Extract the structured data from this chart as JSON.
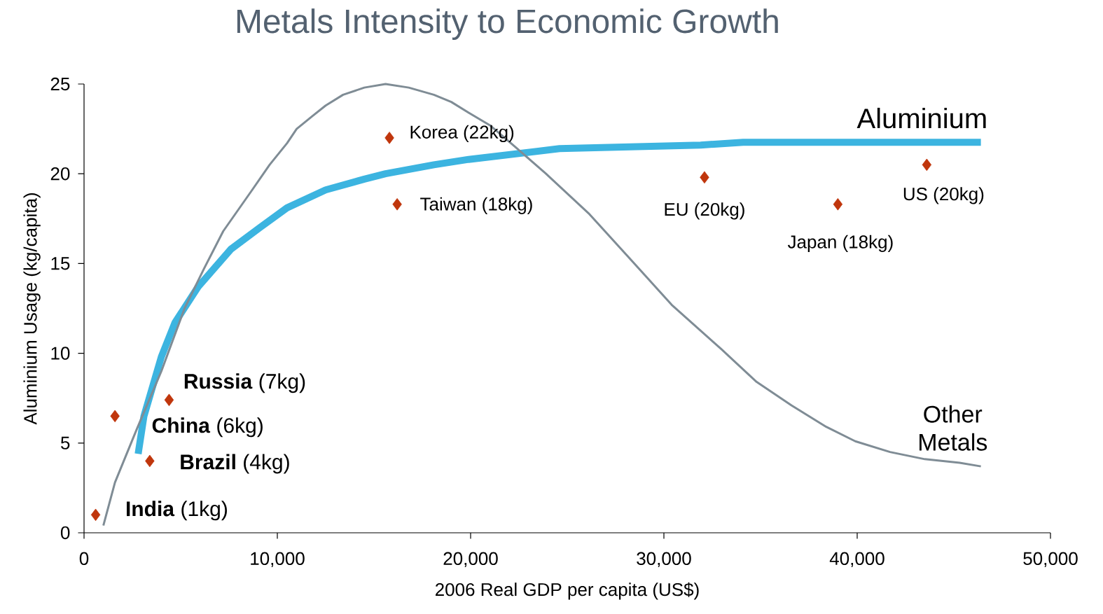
{
  "chart_data": {
    "type": "line",
    "title": "Metals Intensity to Economic Growth",
    "xlabel": "2006 Real GDP per capita (US$)",
    "ylabel": "Aluminium Usage (kg/capita)",
    "xlim": [
      0,
      50000
    ],
    "ylim": [
      0,
      25
    ],
    "xticks": [
      0,
      {
        "value": 10000,
        "label": "10,000"
      },
      {
        "value": 20000,
        "label": "20,000"
      },
      {
        "value": 30000,
        "label": "30,000"
      },
      {
        "value": 40000,
        "label": "40,000"
      },
      {
        "value": 50000,
        "label": "50,000"
      }
    ],
    "yticks": [
      0,
      5,
      10,
      15,
      20,
      25
    ],
    "series": [
      {
        "name": "Aluminium",
        "color": "#3cb4e0",
        "x": [
          2800,
          3100,
          4000,
          4700,
          5900,
          7600,
          9100,
          10500,
          12500,
          14500,
          15600,
          18100,
          19900,
          24600,
          31900,
          34100,
          46400
        ],
        "values": [
          4.4,
          6.5,
          9.8,
          11.7,
          13.7,
          15.8,
          17.0,
          18.1,
          19.1,
          19.7,
          20.0,
          20.5,
          20.8,
          21.4,
          21.6,
          21.75,
          21.75
        ]
      },
      {
        "name": "Other Metals",
        "color": "#7f8c95",
        "x": [
          1000,
          1600,
          2700,
          4000,
          5200,
          6200,
          7200,
          8700,
          9600,
          10500,
          11000,
          11800,
          12500,
          13400,
          14500,
          15600,
          16800,
          18100,
          19000,
          19900,
          21000,
          22300,
          23900,
          26100,
          28300,
          30400,
          33000,
          34800,
          36600,
          38400,
          39900,
          41700,
          43500,
          45300,
          46400
        ],
        "values": [
          0.4,
          2.8,
          5.7,
          9.0,
          12.5,
          14.7,
          16.8,
          19.1,
          20.5,
          21.7,
          22.5,
          23.2,
          23.8,
          24.4,
          24.8,
          25.0,
          24.8,
          24.4,
          24.0,
          23.4,
          22.7,
          21.5,
          20.0,
          17.8,
          15.2,
          12.7,
          10.2,
          8.4,
          7.1,
          5.9,
          5.1,
          4.5,
          4.1,
          3.9,
          3.7
        ]
      },
      {
        "type": "scatter",
        "marker": "diamond",
        "color": "#c0360c",
        "x": [
          600,
          1600,
          4400,
          3400,
          15800,
          16200,
          32100,
          39000,
          43600
        ],
        "values": [
          1.0,
          6.5,
          7.4,
          4.0,
          22.0,
          18.3,
          19.8,
          18.3,
          20.5
        ]
      }
    ],
    "annotations": [
      {
        "text": "**India** (1kg)",
        "x": 600,
        "y": 1.0
      },
      {
        "text": "**China** (6kg)",
        "x": 1600,
        "y": 6.5
      },
      {
        "text": "**Russia** (7kg)",
        "x": 4400,
        "y": 7.4
      },
      {
        "text": "**Brazil** (4kg)",
        "x": 3400,
        "y": 4.0
      },
      {
        "text": "Korea (22kg)",
        "x": 15800,
        "y": 22.0
      },
      {
        "text": "Taiwan (18kg)",
        "x": 16200,
        "y": 18.3
      },
      {
        "text": "EU (20kg)",
        "x": 32100,
        "y": 19.8
      },
      {
        "text": "Japan (18kg)",
        "x": 39000,
        "y": 18.3
      },
      {
        "text": "US (20kg)",
        "x": 43600,
        "y": 20.5
      }
    ]
  }
}
